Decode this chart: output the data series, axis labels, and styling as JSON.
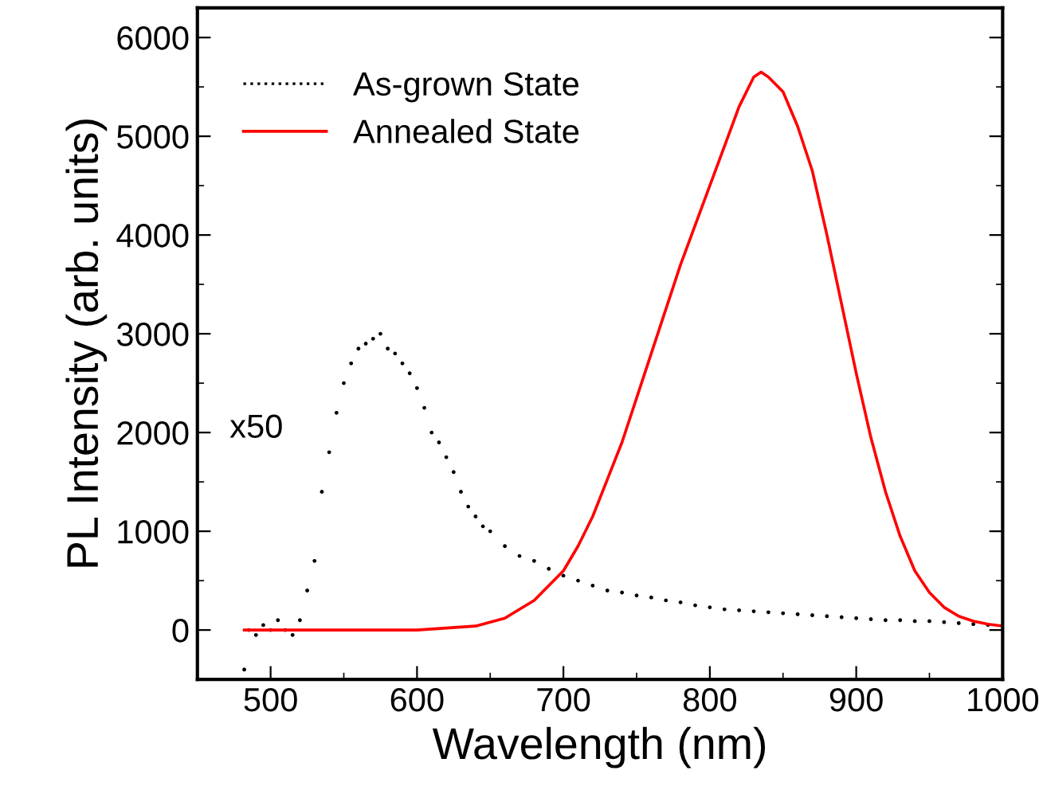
{
  "chart_data": {
    "type": "line",
    "xlabel": "Wavelength (nm)",
    "ylabel": "PL Intensity (arb. units)",
    "xlim": [
      450,
      1000
    ],
    "xticks": [
      500,
      600,
      700,
      800,
      900,
      1000
    ],
    "ylim": [
      -500,
      6300
    ],
    "yticks": [
      0,
      1000,
      2000,
      3000,
      4000,
      5000,
      6000
    ],
    "grid": false,
    "legend": "top left",
    "annotations": [
      "x50"
    ],
    "series": [
      {
        "name": "As-grown State",
        "type": "scatter",
        "marker": "circle",
        "color": "#000000",
        "x": [
          482,
          485,
          490,
          495,
          500,
          505,
          510,
          515,
          520,
          525,
          530,
          535,
          540,
          545,
          550,
          555,
          560,
          565,
          570,
          575,
          580,
          585,
          590,
          595,
          600,
          605,
          610,
          615,
          620,
          625,
          630,
          635,
          640,
          645,
          650,
          660,
          670,
          680,
          690,
          700,
          710,
          720,
          730,
          740,
          750,
          760,
          770,
          780,
          790,
          800,
          810,
          820,
          830,
          840,
          850,
          860,
          870,
          880,
          890,
          900,
          910,
          920,
          930,
          940,
          950,
          960,
          970,
          980,
          990,
          1000
        ],
        "values": [
          -400,
          0,
          -50,
          50,
          0,
          100,
          0,
          -50,
          100,
          400,
          700,
          1400,
          1800,
          2200,
          2500,
          2700,
          2850,
          2900,
          2950,
          3000,
          2850,
          2800,
          2700,
          2600,
          2450,
          2250,
          2000,
          1900,
          1750,
          1600,
          1400,
          1250,
          1150,
          1050,
          1000,
          850,
          750,
          700,
          620,
          550,
          500,
          450,
          400,
          380,
          350,
          330,
          300,
          280,
          250,
          230,
          210,
          200,
          190,
          180,
          170,
          160,
          150,
          140,
          130,
          120,
          110,
          100,
          100,
          90,
          90,
          80,
          70,
          60,
          50,
          50
        ]
      },
      {
        "name": "Annealed State",
        "line_style": "solid",
        "color": "#ff0000",
        "x": [
          482,
          600,
          640,
          660,
          680,
          700,
          710,
          720,
          740,
          760,
          780,
          800,
          810,
          820,
          830,
          835,
          840,
          850,
          860,
          870,
          880,
          890,
          900,
          910,
          920,
          930,
          940,
          950,
          960,
          970,
          980,
          990,
          1000
        ],
        "values": [
          0,
          0,
          40,
          120,
          300,
          600,
          850,
          1150,
          1900,
          2800,
          3700,
          4500,
          4900,
          5300,
          5600,
          5650,
          5600,
          5450,
          5100,
          4650,
          4000,
          3300,
          2600,
          1950,
          1400,
          950,
          600,
          380,
          230,
          140,
          90,
          60,
          40
        ]
      }
    ]
  }
}
